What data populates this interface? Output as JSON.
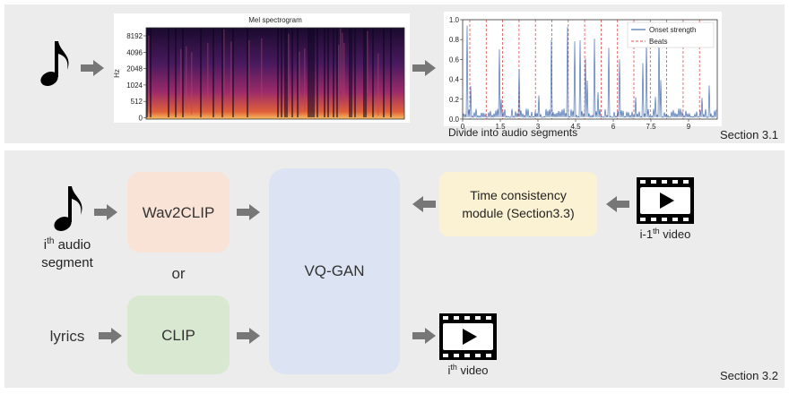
{
  "section1": {
    "spectrogram": {
      "title": "Mel spectrogram",
      "y_axis_label": "Hz",
      "yticks": [
        "8192",
        "4096",
        "2048",
        "1024",
        "512",
        "0"
      ]
    },
    "onset_plot": {
      "yticks": [
        "0.0",
        "0.2",
        "0.4",
        "0.6",
        "0.8",
        "1.0"
      ],
      "xticks": [
        "0",
        "1.5",
        "3",
        "4.5",
        "6",
        "7.5",
        "9"
      ],
      "legend": [
        "Onset strength",
        "Beats"
      ]
    },
    "caption": "Divide into audio segments",
    "section_label": "Section 3.1"
  },
  "section2": {
    "audio_label": {
      "base": "i",
      "sup": "th",
      "rest": " audio",
      "line2": "segment"
    },
    "wav2clip": "Wav2CLIP",
    "or": "or",
    "lyrics": "lyrics",
    "clip": "CLIP",
    "vqgan": "VQ-GAN",
    "time_module": {
      "line1": "Time consistency",
      "line2": "module (Section3.3)"
    },
    "prev_video": {
      "base": "i-1",
      "sup": "th",
      "rest": " video"
    },
    "out_video": {
      "base": "i",
      "sup": "th",
      "rest": " video"
    },
    "section_label": "Section 3.2"
  }
}
